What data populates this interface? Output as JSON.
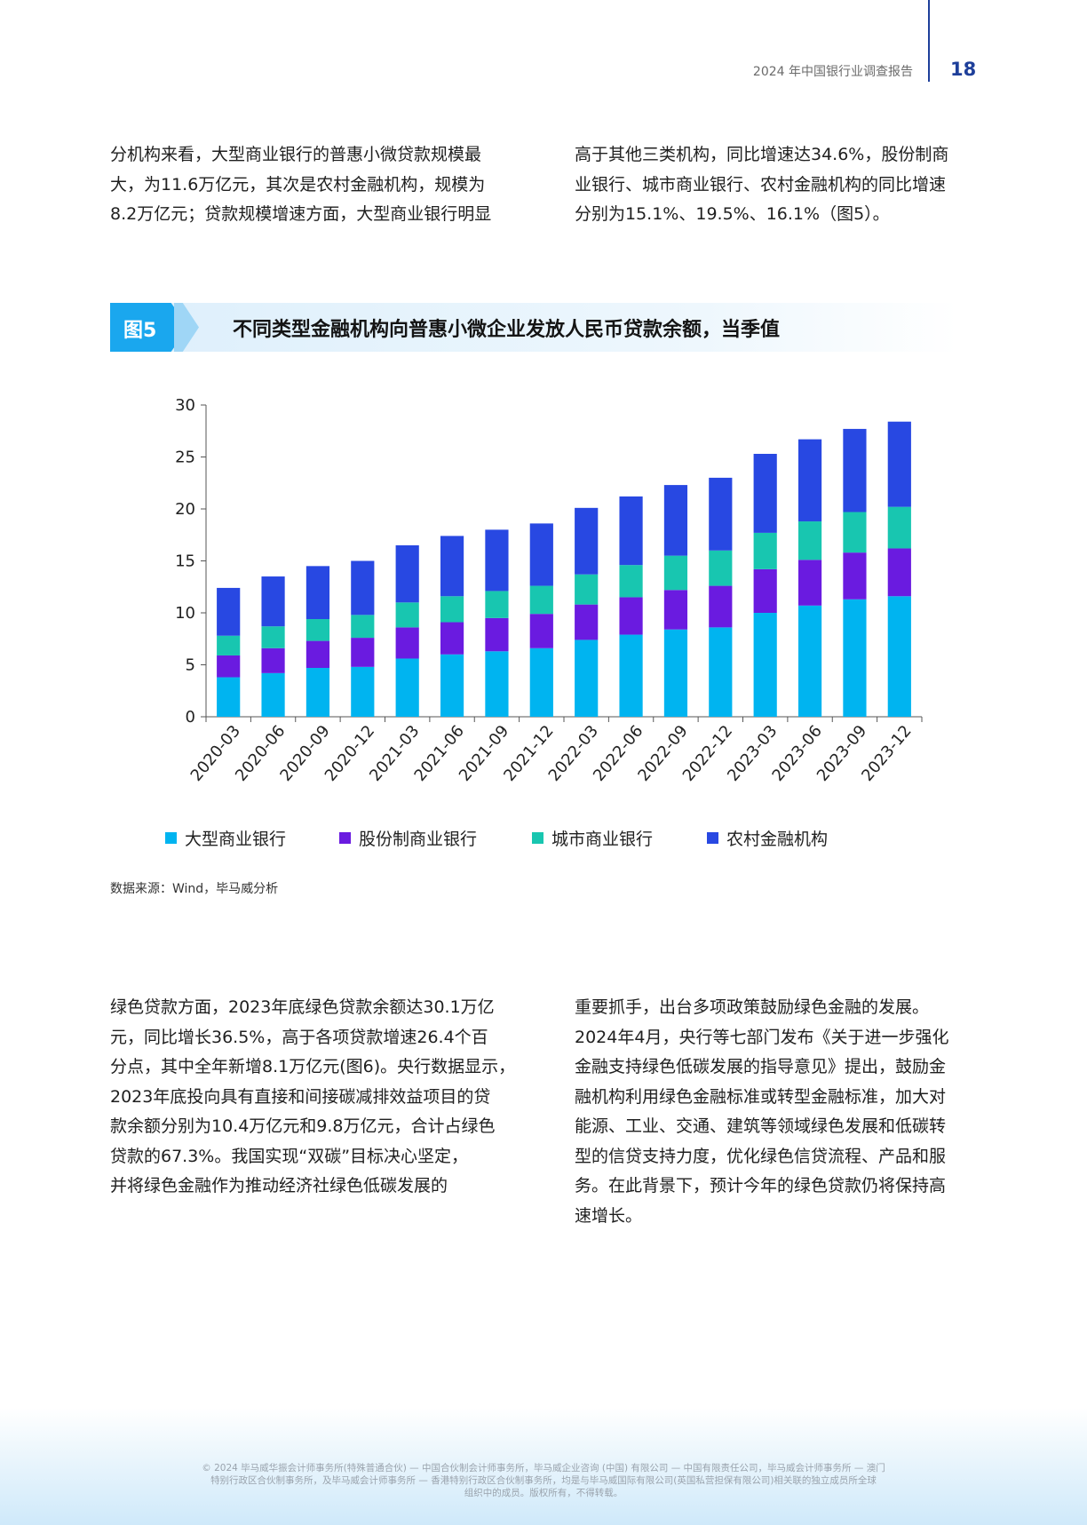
{
  "header": {
    "report_title": "2024 年中国银行业调查报告",
    "page_number": "18",
    "accent_color": "#1e3f9a"
  },
  "intro": {
    "left_lines": [
      "分机构来看，大型商业银行的普惠小微贷款规模最",
      "大，为11.6万亿元，其次是农村金融机构，规模为",
      "8.2万亿元；贷款规模增速方面，大型商业银行明显"
    ],
    "right_lines": [
      "高于其他三类机构，同比增速达34.6%，股份制商",
      "业银行、城市商业银行、农村金融机构的同比增速",
      "分别为15.1%、19.5%、16.1%（图5）。"
    ]
  },
  "figure": {
    "tag": "图5",
    "title": "不同类型金融机构向普惠小微企业发放人民币贷款余额，当季值",
    "source": "数据来源：Wind，毕马威分析"
  },
  "chart_data": {
    "type": "bar",
    "stacked": true,
    "categories": [
      "2020-03",
      "2020-06",
      "2020-09",
      "2020-12",
      "2021-03",
      "2021-06",
      "2021-09",
      "2021-12",
      "2022-03",
      "2022-06",
      "2022-09",
      "2022-12",
      "2023-03",
      "2023-06",
      "2023-09",
      "2023-12"
    ],
    "series": [
      {
        "name": "大型商业银行",
        "color": "#00b4f0",
        "values": [
          3.8,
          4.2,
          4.7,
          4.8,
          5.6,
          6.0,
          6.3,
          6.6,
          7.4,
          7.9,
          8.4,
          8.6,
          10.0,
          10.7,
          11.3,
          11.6
        ]
      },
      {
        "name": "股份制商业银行",
        "color": "#6a1be0",
        "values": [
          2.1,
          2.4,
          2.6,
          2.8,
          3.0,
          3.1,
          3.2,
          3.3,
          3.4,
          3.6,
          3.8,
          4.0,
          4.2,
          4.4,
          4.5,
          4.6
        ]
      },
      {
        "name": "城市商业银行",
        "color": "#18c6b0",
        "values": [
          1.9,
          2.1,
          2.1,
          2.2,
          2.4,
          2.5,
          2.6,
          2.7,
          2.9,
          3.1,
          3.3,
          3.4,
          3.5,
          3.7,
          3.9,
          4.0
        ]
      },
      {
        "name": "农村金融机构",
        "color": "#2848e2",
        "values": [
          4.6,
          4.8,
          5.1,
          5.2,
          5.5,
          5.8,
          5.9,
          6.0,
          6.4,
          6.6,
          6.8,
          7.0,
          7.6,
          7.9,
          8.0,
          8.2
        ]
      }
    ],
    "ylim": [
      0,
      30
    ],
    "yticks": [
      0,
      5,
      10,
      15,
      20,
      25,
      30
    ],
    "title": "",
    "xlabel": "",
    "ylabel": "",
    "legend_position": "bottom"
  },
  "body": {
    "left_lines": [
      "绿色贷款方面，2023年底绿色贷款余额达30.1万亿",
      "元，同比增长36.5%，高于各项贷款增速26.4个百",
      "分点，其中全年新增8.1万亿元(图6)。央行数据显示，",
      "2023年底投向具有直接和间接碳减排效益项目的贷",
      "款余额分别为10.4万亿元和9.8万亿元，合计占绿色",
      "贷款的67.3%。我国实现“双碳”目标决心坚定，",
      "并将绿色金融作为推动经济社绿色低碳发展的"
    ],
    "right_lines": [
      "重要抓手，出台多项政策鼓励绿色金融的发展。",
      "2024年4月，央行等七部门发布《关于进一步强化",
      "金融支持绿色低碳发展的指导意见》提出，鼓励金",
      "融机构利用绿色金融标准或转型金融标准，加大对",
      "能源、工业、交通、建筑等领域绿色发展和低碳转",
      "型的信贷支持力度，优化绿色信贷流程、产品和服",
      "务。在此背景下，预计今年的绿色贷款仍将保持高",
      "速增长。"
    ]
  },
  "footer": {
    "lines": [
      "© 2024 毕马威华振会计师事务所(特殊普通合伙) — 中国合伙制会计师事务所，毕马威企业咨询 (中国) 有限公司 — 中国有限责任公司，毕马威会计师事务所 — 澳门",
      "特别行政区合伙制事务所，及毕马威会计师事务所 — 香港特别行政区合伙制事务所，均是与毕马威国际有限公司(英国私营担保有限公司)相关联的独立成员所全球",
      "组织中的成员。版权所有，不得转载。"
    ]
  }
}
